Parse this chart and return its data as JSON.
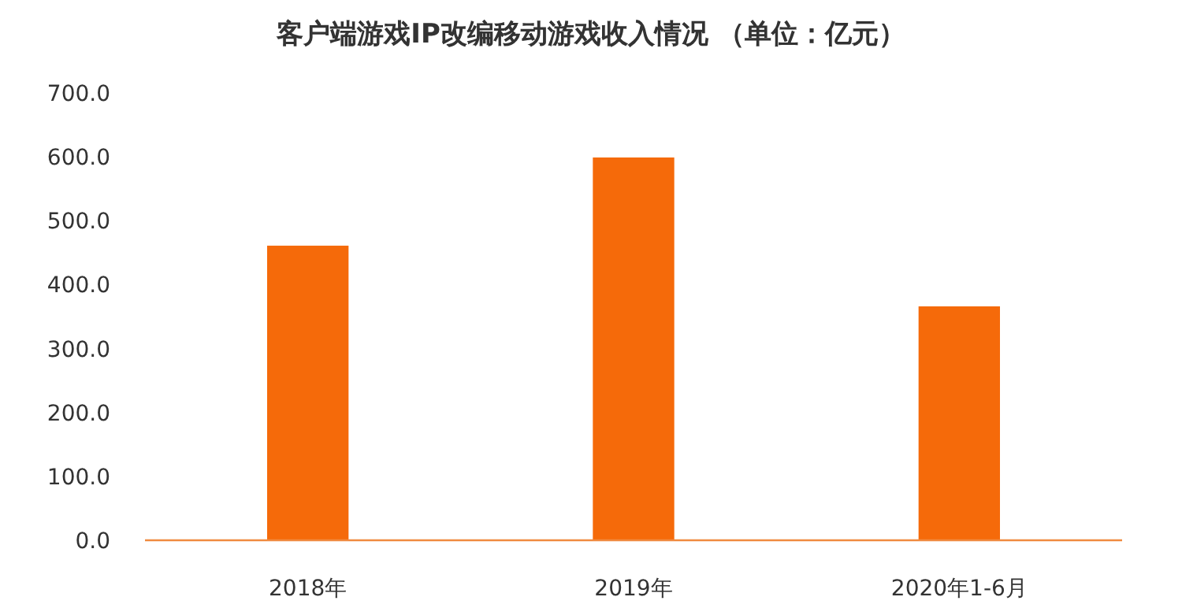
{
  "chart_data": {
    "type": "bar",
    "title": "客户端游戏IP改编移动游戏收入情况 （单位：亿元）",
    "categories": [
      "2018年",
      "2019年",
      "2020年1-6月"
    ],
    "series": [
      {
        "color": "#f56a0a",
        "values": [
          461,
          599,
          366
        ]
      }
    ],
    "ylim": [
      0,
      700
    ],
    "yticks": [
      {
        "value": 0,
        "label": "0.0"
      },
      {
        "value": 100,
        "label": "100.0"
      },
      {
        "value": 200,
        "label": "200.0"
      },
      {
        "value": 300,
        "label": "300.0"
      },
      {
        "value": 400,
        "label": "400.0"
      },
      {
        "value": 500,
        "label": "500.0"
      },
      {
        "value": 600,
        "label": "600.0"
      },
      {
        "value": 700,
        "label": "700.0"
      }
    ],
    "grid": false
  }
}
